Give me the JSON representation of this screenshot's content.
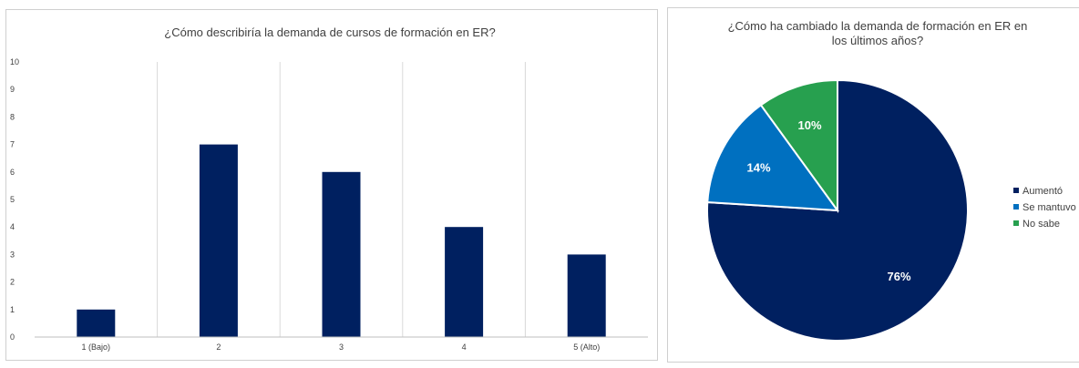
{
  "chart_data": [
    {
      "type": "bar",
      "title": "¿Cómo describiría la demanda de cursos de formación en ER?",
      "categories": [
        "1 (Bajo)",
        "2",
        "3",
        "4",
        "5 (Alto)"
      ],
      "values": [
        1,
        7,
        6,
        4,
        3
      ],
      "yticks": [
        "0",
        "1",
        "2",
        "3",
        "4",
        "5",
        "6",
        "7",
        "8",
        "9",
        "10"
      ],
      "ylim": [
        0,
        10
      ],
      "xlabel": "",
      "ylabel": "",
      "grid": "vertical",
      "color": "#002060"
    },
    {
      "type": "pie",
      "title": "¿Cómo ha cambiado la demanda de formación en ER en los últimos años?",
      "title_lines": [
        "¿Cómo ha cambiado la demanda de formación en ER en",
        "los últimos años?"
      ],
      "labels": [
        "Aumentó",
        "Se mantuvo",
        "No sabe"
      ],
      "values": [
        76,
        14,
        10
      ],
      "value_labels": [
        "76%",
        "14%",
        "10%"
      ],
      "colors": [
        "#002060",
        "#0070C0",
        "#27A04F"
      ],
      "legend": "right"
    }
  ]
}
